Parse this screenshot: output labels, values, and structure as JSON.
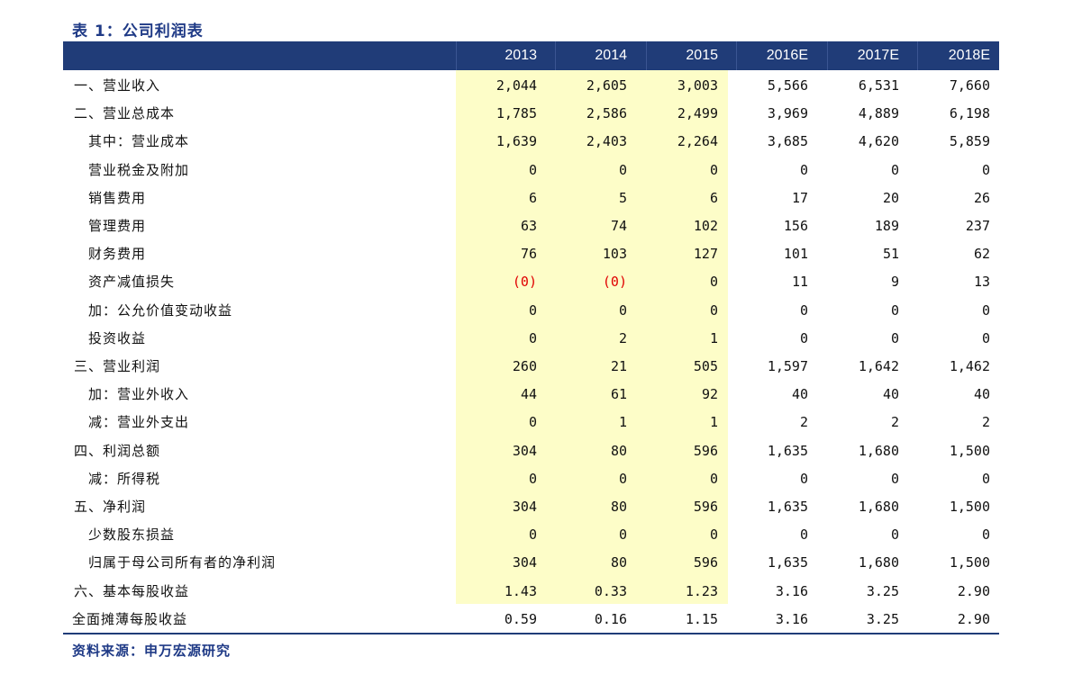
{
  "title": "表 1：公司利润表",
  "columns": [
    "2013",
    "2014",
    "2015",
    "2016E",
    "2017E",
    "2018E"
  ],
  "rows": [
    {
      "label": "一、营业收入",
      "indent": 0,
      "values": [
        "2,044",
        "2,605",
        "3,003",
        "5,566",
        "6,531",
        "7,660"
      ]
    },
    {
      "label": "二、营业总成本",
      "indent": 0,
      "values": [
        "1,785",
        "2,586",
        "2,499",
        "3,969",
        "4,889",
        "6,198"
      ]
    },
    {
      "label": "其中：营业成本",
      "indent": 1,
      "values": [
        "1,639",
        "2,403",
        "2,264",
        "3,685",
        "4,620",
        "5,859"
      ]
    },
    {
      "label": "营业税金及附加",
      "indent": 1,
      "values": [
        "0",
        "0",
        "0",
        "0",
        "0",
        "0"
      ]
    },
    {
      "label": "销售费用",
      "indent": 1,
      "values": [
        "6",
        "5",
        "6",
        "17",
        "20",
        "26"
      ]
    },
    {
      "label": "管理费用",
      "indent": 1,
      "values": [
        "63",
        "74",
        "102",
        "156",
        "189",
        "237"
      ]
    },
    {
      "label": "财务费用",
      "indent": 1,
      "values": [
        "76",
        "103",
        "127",
        "101",
        "51",
        "62"
      ]
    },
    {
      "label": "资产减值损失",
      "indent": 1,
      "values": [
        "(0)",
        "(0)",
        "0",
        "11",
        "9",
        "13"
      ]
    },
    {
      "label": "加：公允价值变动收益",
      "indent": 1,
      "values": [
        "0",
        "0",
        "0",
        "0",
        "0",
        "0"
      ]
    },
    {
      "label": "投资收益",
      "indent": 1,
      "values": [
        "0",
        "2",
        "1",
        "0",
        "0",
        "0"
      ]
    },
    {
      "label": "三、营业利润",
      "indent": 0,
      "values": [
        "260",
        "21",
        "505",
        "1,597",
        "1,642",
        "1,462"
      ]
    },
    {
      "label": "加：营业外收入",
      "indent": 1,
      "values": [
        "44",
        "61",
        "92",
        "40",
        "40",
        "40"
      ]
    },
    {
      "label": "减：营业外支出",
      "indent": 1,
      "values": [
        "0",
        "1",
        "1",
        "2",
        "2",
        "2"
      ]
    },
    {
      "label": "四、利润总额",
      "indent": 0,
      "values": [
        "304",
        "80",
        "596",
        "1,635",
        "1,680",
        "1,500"
      ]
    },
    {
      "label": "减：所得税",
      "indent": 1,
      "values": [
        "0",
        "0",
        "0",
        "0",
        "0",
        "0"
      ]
    },
    {
      "label": "五、净利润",
      "indent": 0,
      "values": [
        "304",
        "80",
        "596",
        "1,635",
        "1,680",
        "1,500"
      ]
    },
    {
      "label": "少数股东损益",
      "indent": 1,
      "values": [
        "0",
        "0",
        "0",
        "0",
        "0",
        "0"
      ]
    },
    {
      "label": "归属于母公司所有者的净利润",
      "indent": 1,
      "values": [
        "304",
        "80",
        "596",
        "1,635",
        "1,680",
        "1,500"
      ]
    },
    {
      "label": "六、基本每股收益",
      "indent": 0,
      "values": [
        "1.43",
        "0.33",
        "1.23",
        "3.16",
        "3.25",
        "2.90"
      ]
    },
    {
      "label": "全面摊薄每股收益",
      "indent": -1,
      "values": [
        "0.59",
        "0.16",
        "1.15",
        "3.16",
        "3.25",
        "2.90"
      ]
    }
  ],
  "source": "资料来源：申万宏源研究",
  "colors": {
    "header_bg": "#203c78",
    "title_text": "#1f3a86",
    "historical_highlight": "#fdfdc8",
    "negative_value": "#e00000"
  }
}
